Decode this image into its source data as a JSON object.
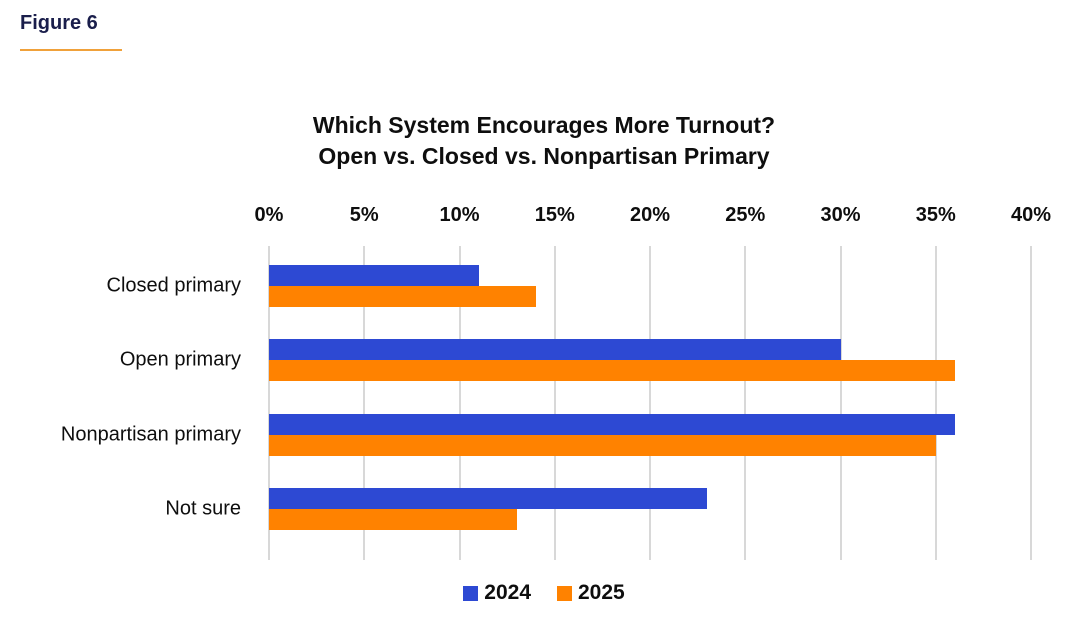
{
  "figure": {
    "label": "Figure 6"
  },
  "chart_data": {
    "type": "bar",
    "orientation": "horizontal",
    "title": "Which System Encourages More Turnout?",
    "subtitle": "Open vs. Closed vs. Nonpartisan Primary",
    "categories": [
      "Closed primary",
      "Open primary",
      "Nonpartisan primary",
      "Not sure"
    ],
    "series": [
      {
        "name": "2024",
        "color": "#2d49d3",
        "values": [
          11,
          30,
          36,
          23
        ]
      },
      {
        "name": "2025",
        "color": "#ff8200",
        "values": [
          14,
          36,
          35,
          13
        ]
      }
    ],
    "x_axis": {
      "min": 0,
      "max": 40,
      "unit": "%",
      "position": "top",
      "tick_labels": [
        "0%",
        "5%",
        "10%",
        "15%",
        "20%",
        "25%",
        "30%",
        "35%",
        "40%"
      ]
    },
    "grid": "vertical",
    "legend_position": "bottom",
    "colors": {
      "gridline": "#d8d8d8",
      "figure_label": "#1a1e4b",
      "figure_underline": "#f0a13a",
      "text": "#0e0e0e"
    }
  }
}
